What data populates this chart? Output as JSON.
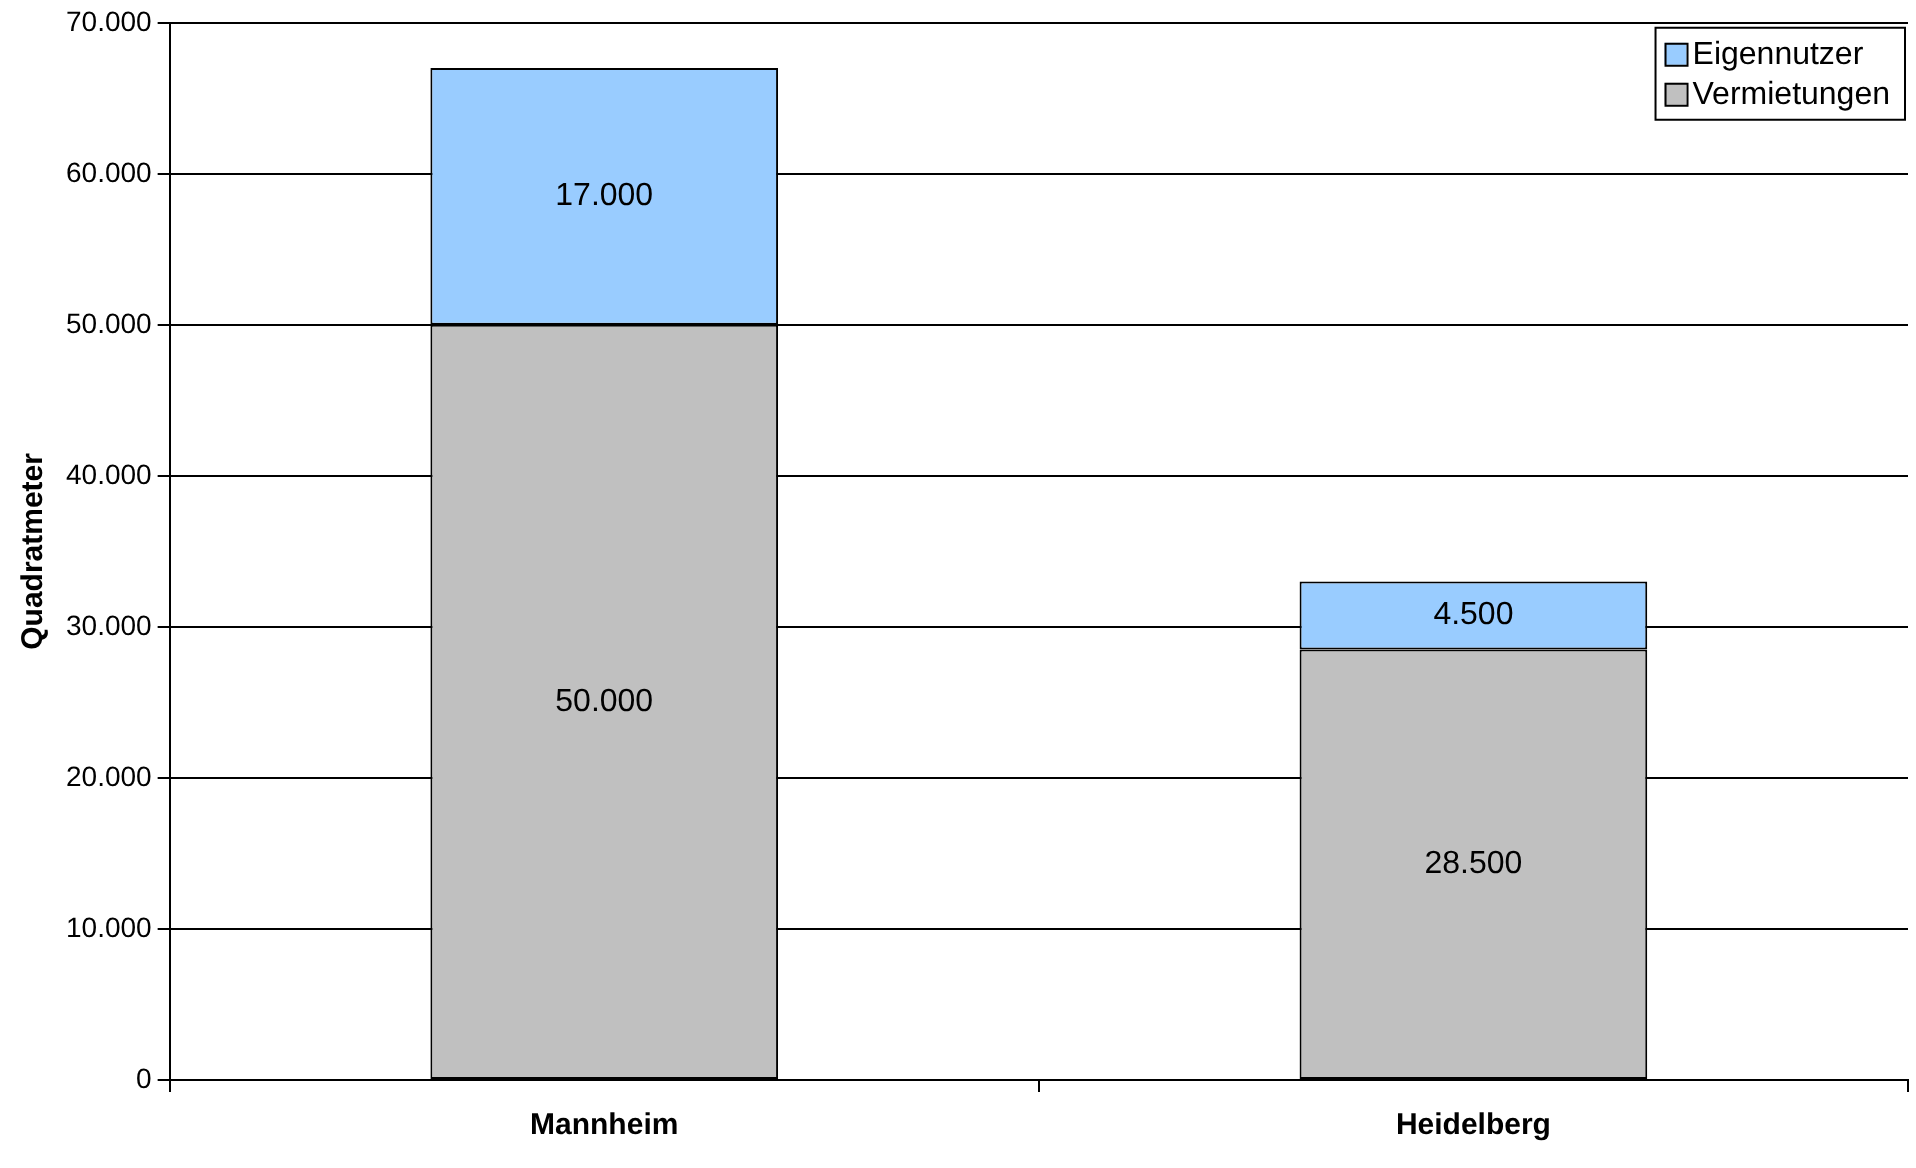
{
  "chart_data": {
    "type": "bar",
    "stacked": true,
    "ylabel": "Quadratmeter",
    "categories": [
      "Mannheim",
      "Heidelberg"
    ],
    "series": [
      {
        "name": "Vermietungen",
        "color": "#c0c0c0",
        "values": [
          50000,
          28500
        ],
        "value_labels": [
          "50.000",
          "28.500"
        ]
      },
      {
        "name": "Eigennutzer",
        "color": "#99ccff",
        "values": [
          17000,
          4500
        ],
        "value_labels": [
          "17.000",
          "4.500"
        ]
      }
    ],
    "ylim": [
      0,
      70000
    ],
    "yticks": [
      {
        "value": 0,
        "label": "0"
      },
      {
        "value": 10000,
        "label": "10.000"
      },
      {
        "value": 20000,
        "label": "20.000"
      },
      {
        "value": 30000,
        "label": "30.000"
      },
      {
        "value": 40000,
        "label": "40.000"
      },
      {
        "value": 50000,
        "label": "50.000"
      },
      {
        "value": 60000,
        "label": "60.000"
      },
      {
        "value": 70000,
        "label": "70.000"
      }
    ],
    "grid": "y",
    "legend": "top right"
  }
}
